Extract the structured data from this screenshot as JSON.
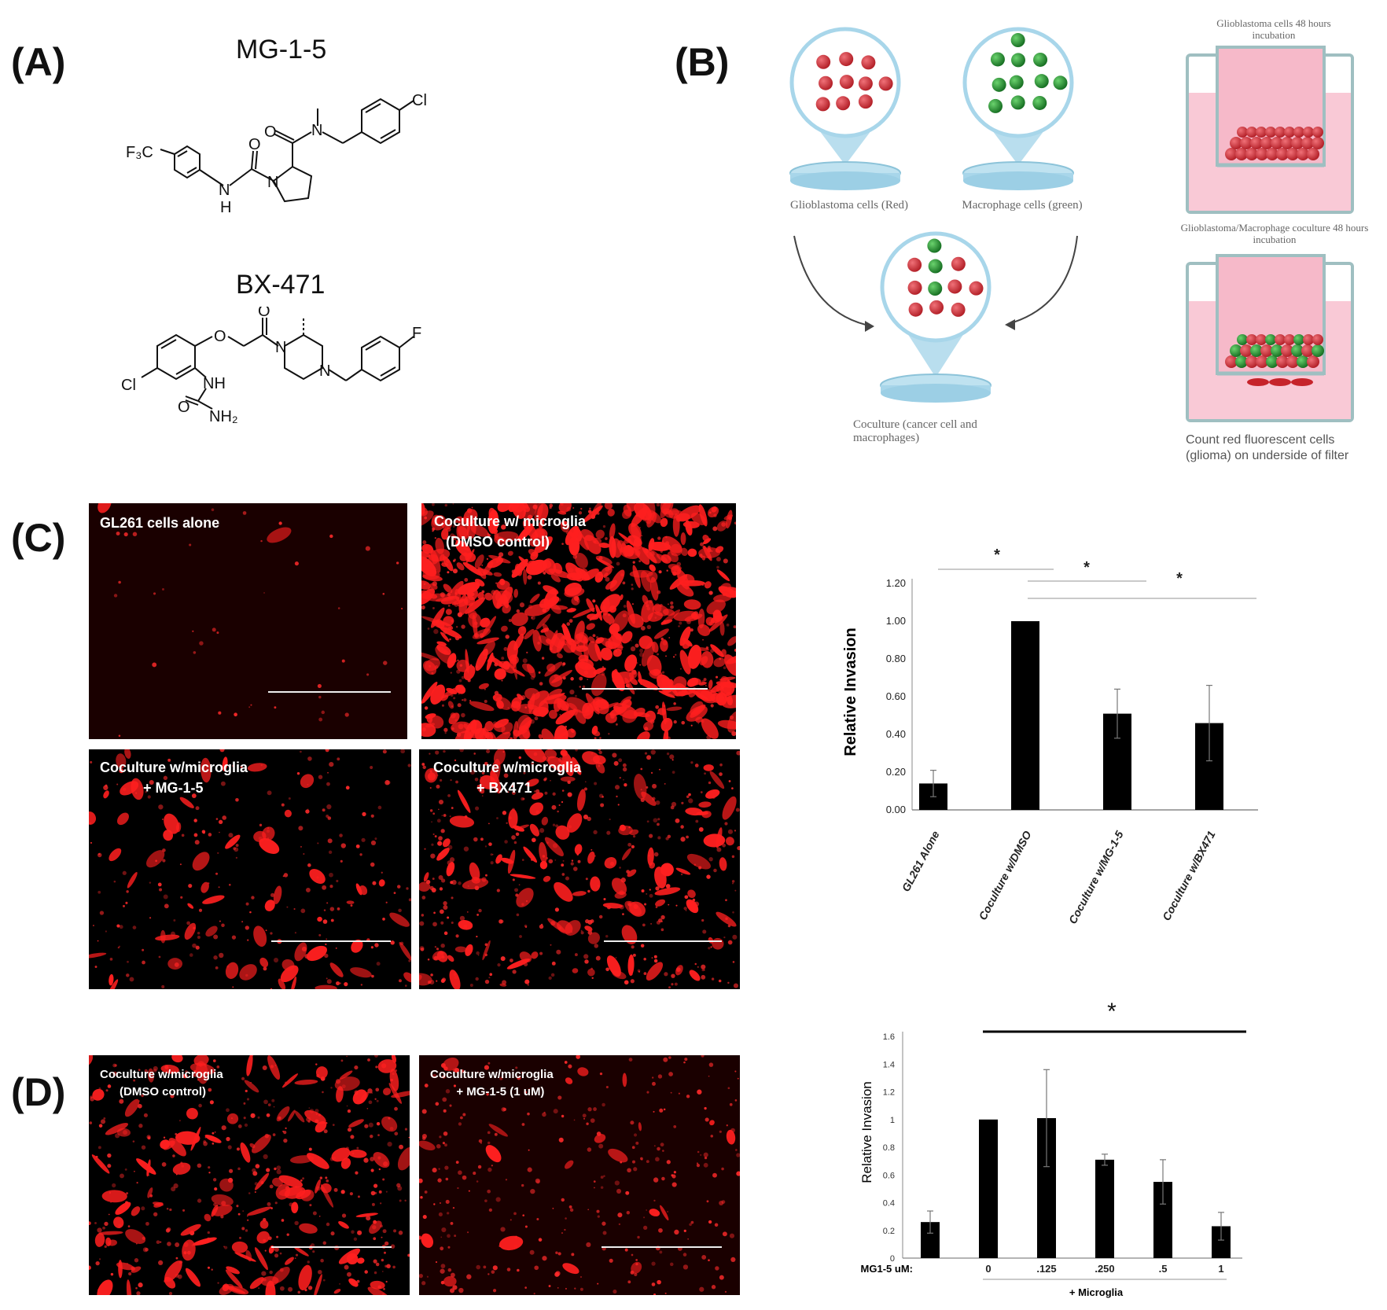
{
  "panels": {
    "A": "(A)",
    "B": "(B)",
    "C": "(C)",
    "D": "(D)"
  },
  "compounds": {
    "mg15": "MG-1-5",
    "bx471": "BX-471"
  },
  "chem_labels": {
    "cf3": "F₃C",
    "cl": "Cl",
    "o": "O",
    "n": "N",
    "nh": "NH",
    "h": "H",
    "f": "F",
    "nh2": "NH₂"
  },
  "schematic": {
    "glio_caption": "Glioblastoma cells (Red)",
    "macro_caption": "Macrophage cells (green)",
    "coculture_caption": "Coculture (cancer cell and macrophages)",
    "well_top_caption": "Glioblastoma cells 48 hours incubation",
    "well_bottom_caption": "Glioblastoma/Macrophage coculture 48 hours incubation",
    "count_caption": "Count red fluorescent cells (glioma) on underside of filter",
    "colors": {
      "red_cell": "#c6242b",
      "green_cell": "#1a8a2a",
      "dish": "#a8d6ea",
      "medium": "#f6b9c9",
      "well": "#9fbfc1"
    }
  },
  "micrographs": {
    "c1": "GL261 cells alone",
    "c2": "Coculture w/ microglia\n   (DMSO control)",
    "c3": "Coculture w/microglia\n           + MG-1-5",
    "c4": "Coculture w/microglia\n           + BX471",
    "d1": "Coculture w/microglia\n      (DMSO control)",
    "d2": "Coculture w/microglia\n        + MG-1-5 (1 uM)"
  },
  "chart_data": [
    {
      "type": "bar",
      "categories": [
        "GL261 Alone",
        "Coculture w/DMSO",
        "Coculture w/MG-1-5",
        "Coculture w/BX471"
      ],
      "values": [
        0.14,
        1.0,
        0.51,
        0.46
      ],
      "errors": [
        0.07,
        0.0,
        0.13,
        0.2
      ],
      "ylabel": "Relative Invasion",
      "ylim": [
        0,
        1.2
      ],
      "yticks": [
        "0.00",
        "0.20",
        "0.40",
        "0.60",
        "0.80",
        "1.00",
        "1.20"
      ],
      "significance": [
        "*",
        "*",
        "*"
      ]
    },
    {
      "type": "bar",
      "xprefix": "MG1-5 uM:",
      "categories": [
        "",
        "0",
        ".125",
        ".250",
        ".5",
        "1"
      ],
      "values": [
        0.26,
        1.0,
        1.01,
        0.71,
        0.55,
        0.23
      ],
      "errors": [
        0.08,
        0.0,
        0.35,
        0.04,
        0.16,
        0.1
      ],
      "ylabel": "Relative Invasion",
      "ylim": [
        0,
        1.6
      ],
      "yticks": [
        "0",
        "0.2",
        "0.4",
        "0.6",
        "0.8",
        "1",
        "1.2",
        "1.4",
        "1.6"
      ],
      "group_label": "+ Microglia",
      "significance": [
        "*"
      ]
    }
  ]
}
